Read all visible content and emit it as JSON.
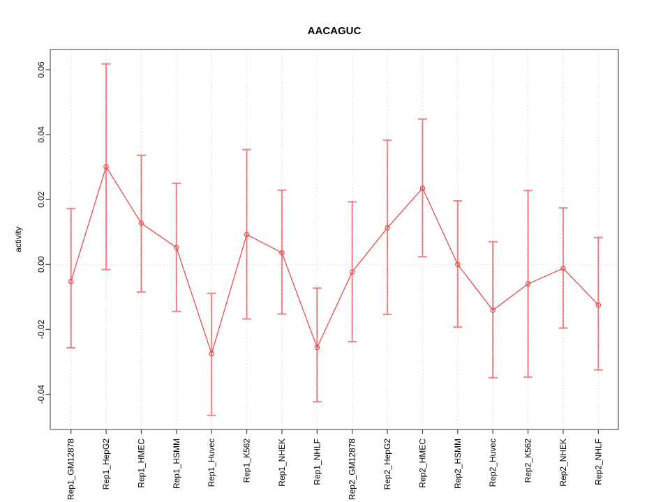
{
  "chart_data": {
    "type": "line",
    "title": "AACAGUC",
    "xlabel": "",
    "ylabel": "activity",
    "categories": [
      "Rep1_GM12878",
      "Rep1_HepG2",
      "Rep1_HMEC",
      "Rep1_HSMM",
      "Rep1_Huvec",
      "Rep1_K562",
      "Rep1_NHEK",
      "Rep1_NHLF",
      "Rep2_GM12878",
      "Rep2_HepG2",
      "Rep2_HMEC",
      "Rep2_HSMM",
      "Rep2_Huvec",
      "Rep2_K562",
      "Rep2_NHEK",
      "Rep2_NHLF"
    ],
    "series": [
      {
        "name": "activity",
        "values": [
          -0.0052,
          0.0301,
          0.0127,
          0.0052,
          -0.0275,
          0.0092,
          0.0036,
          -0.0256,
          -0.0023,
          0.0113,
          0.0235,
          0.0,
          -0.0141,
          -0.006,
          -0.0012,
          -0.0125
        ],
        "error_upper": [
          0.0172,
          0.0618,
          0.0336,
          0.025,
          -0.0089,
          0.0354,
          0.0229,
          -0.0073,
          0.0193,
          0.0383,
          0.0448,
          0.0196,
          0.007,
          0.0228,
          0.0174,
          0.0083
        ],
        "error_lower": [
          -0.0257,
          -0.0016,
          -0.0085,
          -0.0145,
          -0.0465,
          -0.0168,
          -0.0153,
          -0.0423,
          -0.0238,
          -0.0154,
          0.0024,
          -0.0193,
          -0.0349,
          -0.0347,
          -0.0196,
          -0.0325
        ]
      }
    ],
    "yticks": [
      0.06,
      0.04,
      0.02,
      0.0,
      -0.02,
      -0.04
    ],
    "ylim": [
      -0.051,
      0.066
    ],
    "grid": "dotted vertical line at each category; dotted horizontal line at zero",
    "legend_position": "none",
    "marker": "open-circle",
    "colors": {
      "line": "#e84d4d",
      "marker": "#e84d4d",
      "error_bar": "#f38181",
      "error_bar_center": "#e25555",
      "grid": "#d6d6d6",
      "frame": "#8f8f8f",
      "text": "#000000",
      "background": "#ffffff"
    }
  }
}
